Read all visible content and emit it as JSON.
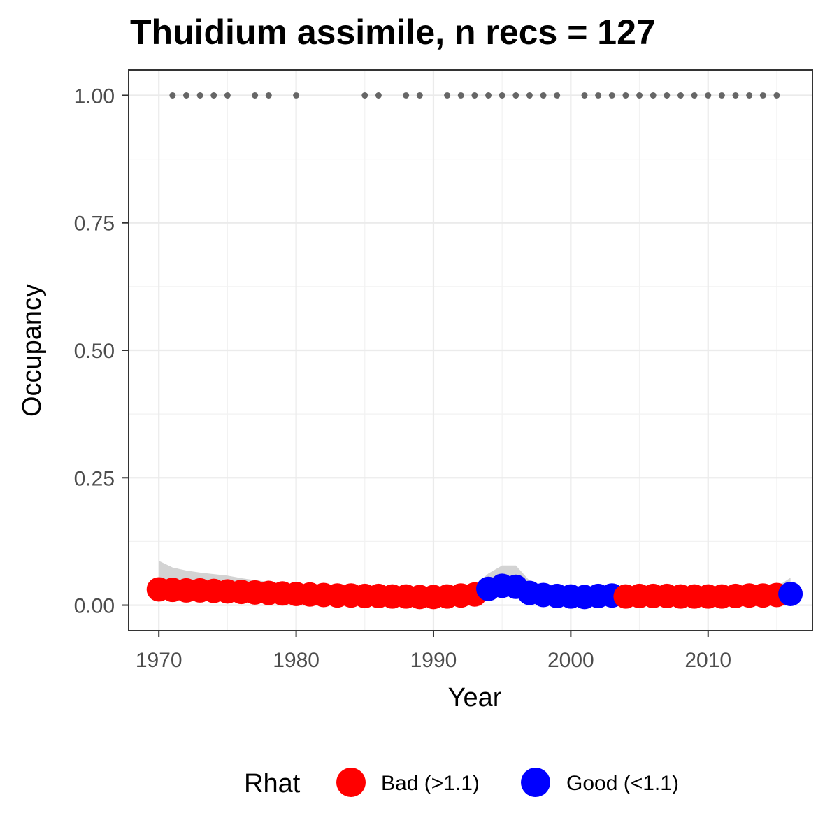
{
  "chart_data": {
    "type": "line",
    "title": "Thuidium assimile, n recs = 127",
    "xlabel": "Year",
    "ylabel": "Occupancy",
    "xlim": [
      1967.8,
      2017.6
    ],
    "ylim": [
      -0.05,
      1.05
    ],
    "x_ticks": [
      1970,
      1980,
      1990,
      2000,
      2010
    ],
    "x_tick_labels": [
      "1970",
      "1980",
      "1990",
      "2000",
      "2010"
    ],
    "y_ticks": [
      0,
      0.25,
      0.5,
      0.75,
      1
    ],
    "y_tick_labels": [
      "0.00",
      "0.25",
      "0.50",
      "0.75",
      "1.00"
    ],
    "grid": true,
    "legend": {
      "title": "Rhat",
      "placement": "bottom",
      "entries": [
        {
          "label": "Bad (>1.1)",
          "color": "#ff0000"
        },
        {
          "label": "Good (<1.1)",
          "color": "#0000ff"
        }
      ]
    },
    "colors": {
      "bad": "#ff0000",
      "good": "#0000ff",
      "records": "#666666",
      "ribbon": "#d3d3d3"
    },
    "occupancy": {
      "x": [
        1970,
        1971,
        1972,
        1973,
        1974,
        1975,
        1976,
        1977,
        1978,
        1979,
        1980,
        1981,
        1982,
        1983,
        1984,
        1985,
        1986,
        1987,
        1988,
        1989,
        1990,
        1991,
        1992,
        1993,
        1994,
        1995,
        1996,
        1997,
        1998,
        1999,
        2000,
        2001,
        2002,
        2003,
        2004,
        2005,
        2006,
        2007,
        2008,
        2009,
        2010,
        2011,
        2012,
        2013,
        2014,
        2015,
        2016
      ],
      "y": [
        0.031,
        0.03,
        0.029,
        0.029,
        0.028,
        0.027,
        0.026,
        0.025,
        0.024,
        0.023,
        0.022,
        0.021,
        0.02,
        0.019,
        0.019,
        0.018,
        0.018,
        0.017,
        0.017,
        0.016,
        0.016,
        0.017,
        0.019,
        0.021,
        0.032,
        0.038,
        0.036,
        0.024,
        0.02,
        0.018,
        0.017,
        0.016,
        0.018,
        0.019,
        0.017,
        0.018,
        0.018,
        0.018,
        0.017,
        0.017,
        0.017,
        0.017,
        0.018,
        0.019,
        0.019,
        0.02,
        0.022
      ],
      "rhat": [
        "bad",
        "bad",
        "bad",
        "bad",
        "bad",
        "bad",
        "bad",
        "bad",
        "bad",
        "bad",
        "bad",
        "bad",
        "bad",
        "bad",
        "bad",
        "bad",
        "bad",
        "bad",
        "bad",
        "bad",
        "bad",
        "bad",
        "bad",
        "bad",
        "good",
        "good",
        "good",
        "good",
        "good",
        "good",
        "good",
        "good",
        "good",
        "good",
        "bad",
        "bad",
        "bad",
        "bad",
        "bad",
        "bad",
        "bad",
        "bad",
        "bad",
        "bad",
        "bad",
        "bad",
        "good"
      ]
    },
    "ribbon": {
      "x": [
        1970,
        1971,
        1972,
        1973,
        1974,
        1975,
        1976,
        1977,
        1978,
        1979,
        1980,
        1981,
        1982,
        1983,
        1984,
        1985,
        1986,
        1987,
        1988,
        1989,
        1990,
        1991,
        1992,
        1993,
        1994,
        1995,
        1996,
        1997,
        1998,
        1999,
        2000,
        2001,
        2002,
        2003,
        2004,
        2005,
        2006,
        2007,
        2008,
        2009,
        2010,
        2011,
        2012,
        2013,
        2014,
        2015,
        2016
      ],
      "lower": [
        0.01,
        0.011,
        0.011,
        0.012,
        0.012,
        0.012,
        0.012,
        0.012,
        0.012,
        0.011,
        0.011,
        0.01,
        0.01,
        0.01,
        0.009,
        0.009,
        0.009,
        0.009,
        0.008,
        0.008,
        0.008,
        0.009,
        0.01,
        0.012,
        0.018,
        0.022,
        0.02,
        0.012,
        0.01,
        0.009,
        0.009,
        0.008,
        0.009,
        0.01,
        0.009,
        0.009,
        0.009,
        0.009,
        0.009,
        0.009,
        0.009,
        0.009,
        0.009,
        0.01,
        0.01,
        0.01,
        0.011
      ],
      "upper": [
        0.087,
        0.074,
        0.068,
        0.064,
        0.061,
        0.058,
        0.053,
        0.049,
        0.046,
        0.043,
        0.04,
        0.038,
        0.035,
        0.033,
        0.032,
        0.031,
        0.03,
        0.029,
        0.028,
        0.027,
        0.027,
        0.029,
        0.033,
        0.038,
        0.062,
        0.078,
        0.078,
        0.048,
        0.036,
        0.032,
        0.03,
        0.029,
        0.032,
        0.034,
        0.03,
        0.031,
        0.031,
        0.031,
        0.03,
        0.03,
        0.03,
        0.03,
        0.031,
        0.033,
        0.034,
        0.036,
        0.054
      ]
    },
    "record_years": [
      1971,
      1972,
      1973,
      1974,
      1975,
      1977,
      1978,
      1980,
      1985,
      1986,
      1988,
      1989,
      1991,
      1992,
      1993,
      1994,
      1995,
      1996,
      1997,
      1998,
      1999,
      2001,
      2002,
      2003,
      2004,
      2005,
      2006,
      2007,
      2008,
      2009,
      2010,
      2011,
      2012,
      2013,
      2014,
      2015
    ],
    "record_value": 1.0
  }
}
